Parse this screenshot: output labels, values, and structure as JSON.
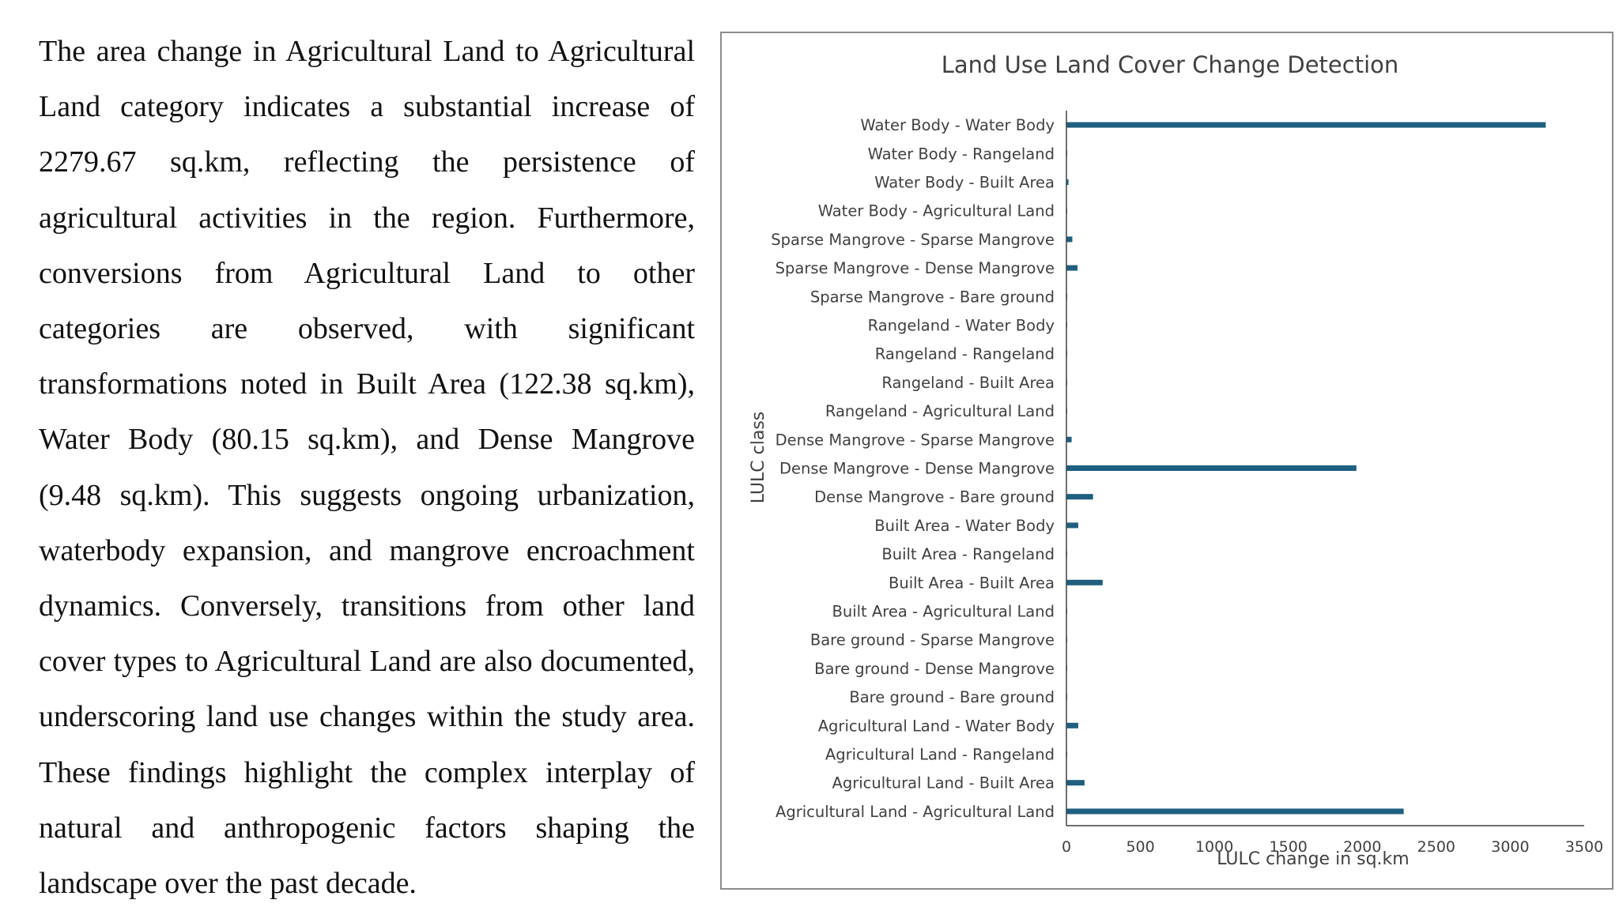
{
  "paragraph": "The area change in Agricultural Land to Agricultural Land category indicates a substantial increase of 2279.67 sq.km, reflecting the persistence of agricultural activities in the region. Furthermore, conversions from Agricultural Land to other categories are observed, with significant transformations noted in Built Area (122.38 sq.km), Water Body (80.15 sq.km), and Dense Mangrove (9.48 sq.km). This suggests ongoing urbanization, waterbody expansion, and mangrove encroachment dynamics. Conversely, transitions from other land cover types to Agricultural Land are also documented, underscoring land use changes within the study area. These findings highlight the complex interplay of natural and anthropogenic factors shaping the landscape over the past decade.",
  "colors": {
    "bar": "#1f5f7f",
    "axis": "#404040",
    "frame": "#8c8c8c"
  },
  "chart_data": {
    "type": "bar",
    "orientation": "horizontal",
    "title": "Land Use Land Cover Change Detection",
    "xlabel": "LULC change in sq.km",
    "ylabel": "LULC class",
    "xlim": [
      0,
      3500
    ],
    "xticks": [
      0,
      500,
      1000,
      1500,
      2000,
      2500,
      3000,
      3500
    ],
    "grid": false,
    "categories": [
      "Water Body - Water Body",
      "Water Body - Rangeland",
      "Water Body - Built Area",
      "Water Body - Agricultural Land",
      "Sparse Mangrove - Sparse Mangrove",
      "Sparse Mangrove - Dense Mangrove",
      "Sparse Mangrove - Bare ground",
      "Rangeland - Water Body",
      "Rangeland - Rangeland",
      "Rangeland - Built Area",
      "Rangeland - Agricultural Land",
      "Dense Mangrove - Sparse Mangrove",
      "Dense Mangrove - Dense Mangrove",
      "Dense Mangrove - Bare ground",
      "Built Area - Water Body",
      "Built Area - Rangeland",
      "Built Area - Built Area",
      "Built Area - Agricultural Land",
      "Bare ground - Sparse Mangrove",
      "Bare ground - Dense Mangrove",
      "Bare ground - Bare ground",
      "Agricultural Land - Water Body",
      "Agricultural Land - Rangeland",
      "Agricultural Land - Built Area",
      "Agricultural Land - Agricultural Land"
    ],
    "values": [
      3240,
      2,
      14,
      2,
      40,
      75,
      1,
      1,
      1,
      1,
      3,
      35,
      1960,
      180,
      80,
      2,
      245,
      2,
      1,
      1,
      1,
      80,
      2,
      122.38,
      2279.67
    ]
  }
}
